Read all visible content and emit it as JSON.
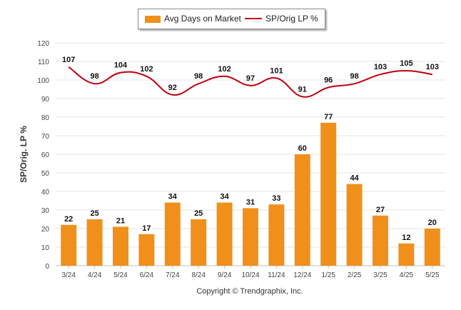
{
  "legend": {
    "bar_label": "Avg Days on Market",
    "line_label": "SP/Orig LP %"
  },
  "footer": {
    "copyright": "Copyright © Trendgraphix, Inc."
  },
  "colors": {
    "bar": "#f0901b",
    "line": "#c0000f",
    "grid": "#e6e6e6"
  },
  "chart_data": {
    "type": "bar",
    "categories": [
      "3/24",
      "4/24",
      "5/24",
      "6/24",
      "7/24",
      "8/24",
      "9/24",
      "10/24",
      "11/24",
      "12/24",
      "1/25",
      "2/25",
      "3/25",
      "4/25",
      "5/25"
    ],
    "series": [
      {
        "name": "Avg Days on Market",
        "type": "bar",
        "values": [
          22,
          25,
          21,
          17,
          34,
          25,
          34,
          31,
          33,
          60,
          77,
          44,
          27,
          12,
          20
        ]
      },
      {
        "name": "SP/Orig LP %",
        "type": "line",
        "values": [
          107,
          98,
          104,
          102,
          92,
          98,
          102,
          97,
          101,
          91,
          96,
          98,
          103,
          105,
          103
        ]
      }
    ],
    "ylabel": "SP/Orig. LP %",
    "xlabel": "",
    "ylim": [
      0,
      120
    ],
    "yticks": [
      0,
      10,
      20,
      30,
      40,
      50,
      60,
      70,
      80,
      90,
      100,
      110,
      120
    ],
    "grid": true,
    "legend_position": "top-center"
  }
}
